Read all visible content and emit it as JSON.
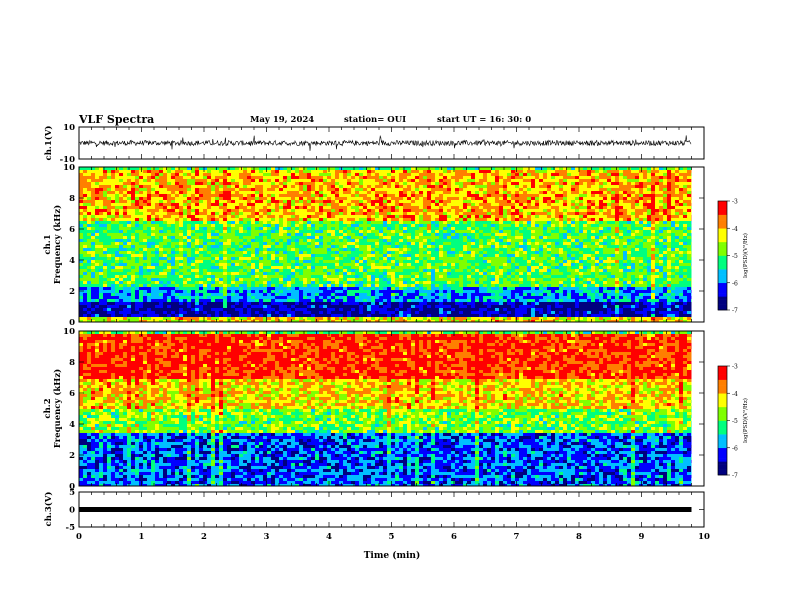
{
  "header": {
    "title": "VLF Spectra",
    "date": "May 19, 2024",
    "station": "station= OUI",
    "start": "start  UT =   16: 30: 0"
  },
  "chart_data": [
    {
      "type": "line",
      "panel": "ch1-waveform",
      "ylabel": "ch.1(V)",
      "ylim": [
        -10,
        10
      ],
      "yticks": [
        "10",
        "-10"
      ],
      "baseline": 0,
      "x_range": [
        0,
        9.8
      ],
      "note_series": "noisy waveform centered near 0 V with spikes up to about ±5 V"
    },
    {
      "type": "heatmap",
      "panel": "ch1-spectrogram",
      "ylabel": "ch.1\nFrequency (kHz)",
      "ylim": [
        0,
        10
      ],
      "yticks": [
        "0",
        "2",
        "4",
        "6",
        "8",
        "10"
      ],
      "x_range": [
        0,
        9.8
      ],
      "colorbar": {
        "label": "log(PSD)(V²/Hz)",
        "range": [
          -7,
          -3
        ],
        "ticks": [
          "-3",
          "-4",
          "-5",
          "-6",
          "-7"
        ]
      },
      "bands": [
        {
          "f": [
            0,
            0.4
          ],
          "level": -4.3
        },
        {
          "f": [
            0.4,
            1.4
          ],
          "level": -6.6
        },
        {
          "f": [
            1.4,
            2.4
          ],
          "level": -5.8
        },
        {
          "f": [
            2.4,
            6.6
          ],
          "level": -5.0
        },
        {
          "f": [
            6.6,
            10
          ],
          "level": -4.0
        }
      ]
    },
    {
      "type": "heatmap",
      "panel": "ch2-spectrogram",
      "ylabel": "ch.2\nFrequency (kHz)",
      "ylim": [
        0,
        10
      ],
      "yticks": [
        "0",
        "2",
        "4",
        "6",
        "8",
        "10"
      ],
      "x_range": [
        0,
        9.8
      ],
      "colorbar": {
        "label": "log(PSD)(V²/Hz)",
        "range": [
          -7,
          -3
        ],
        "ticks": [
          "-3",
          "-4",
          "-5",
          "-6",
          "-7"
        ]
      },
      "bands": [
        {
          "f": [
            0,
            3.5
          ],
          "level": -6.1
        },
        {
          "f": [
            3.5,
            5.0
          ],
          "level": -4.9
        },
        {
          "f": [
            5.0,
            7.0
          ],
          "level": -4.2
        },
        {
          "f": [
            7.0,
            10
          ],
          "level": -3.4
        }
      ]
    },
    {
      "type": "line",
      "panel": "ch3-waveform",
      "ylabel": "ch.3(V)",
      "ylim": [
        -5,
        5
      ],
      "yticks": [
        "5",
        "0",
        "-5"
      ],
      "values_constant": 0,
      "x_range": [
        0,
        9.8
      ]
    }
  ],
  "xaxis": {
    "label": "Time (min)",
    "xlim": [
      0,
      10
    ],
    "ticks": [
      "0",
      "1",
      "2",
      "3",
      "4",
      "5",
      "6",
      "7",
      "8",
      "9",
      "10"
    ]
  },
  "colors": {
    "line": "#000000",
    "colormap": [
      "#00007f",
      "#0000ff",
      "#00bfff",
      "#00ff7f",
      "#7fff00",
      "#ffff00",
      "#ff7f00",
      "#ff0000",
      "#ffffff"
    ]
  }
}
